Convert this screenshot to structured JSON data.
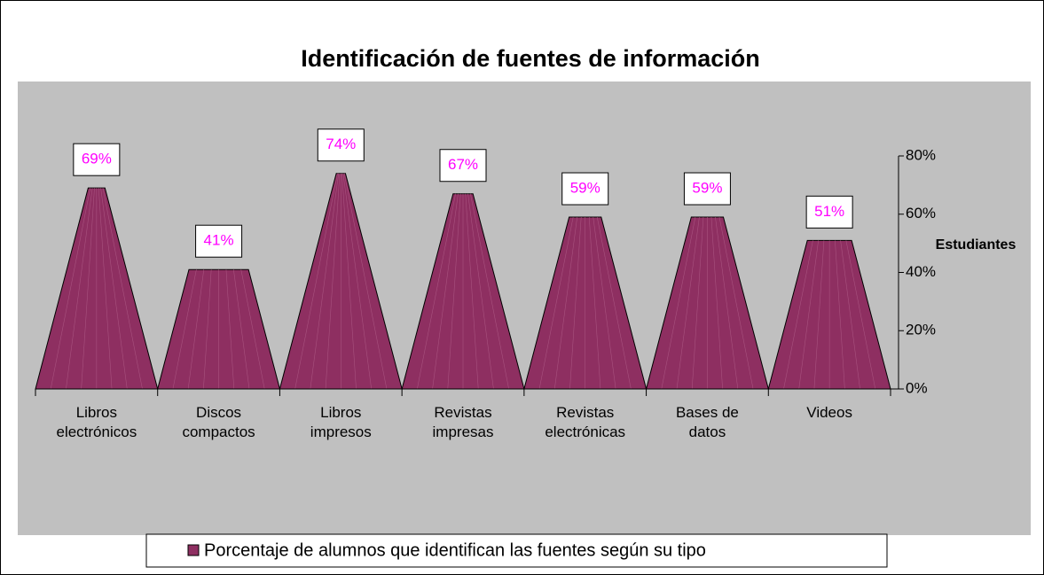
{
  "chart_data": {
    "type": "bar",
    "shape": "pyramid",
    "title": "Identificación de fuentes de información",
    "y_label": "Estudiantes",
    "categories": [
      "Libros\nelectrónicos",
      "Discos\ncompactos",
      "Libros\nimpresos",
      "Revistas\nimpresas",
      "Revistas\nelectrónicas",
      "Bases de\ndatos",
      "Videos"
    ],
    "series": [
      {
        "name": "Porcentaje de alumnos que identifican las fuentes según su tipo",
        "color": "#8e2f61",
        "values": [
          69,
          41,
          74,
          67,
          59,
          59,
          51
        ],
        "value_labels": [
          "69%",
          "41%",
          "74%",
          "67%",
          "59%",
          "59%",
          "51%"
        ]
      }
    ],
    "ylim": [
      0,
      80
    ],
    "yticks": [
      {
        "value": 0,
        "label": "0%"
      },
      {
        "value": 20,
        "label": "20%"
      },
      {
        "value": 40,
        "label": "40%"
      },
      {
        "value": 60,
        "label": "60%"
      },
      {
        "value": 80,
        "label": "80%"
      }
    ],
    "legend": "bottom"
  }
}
